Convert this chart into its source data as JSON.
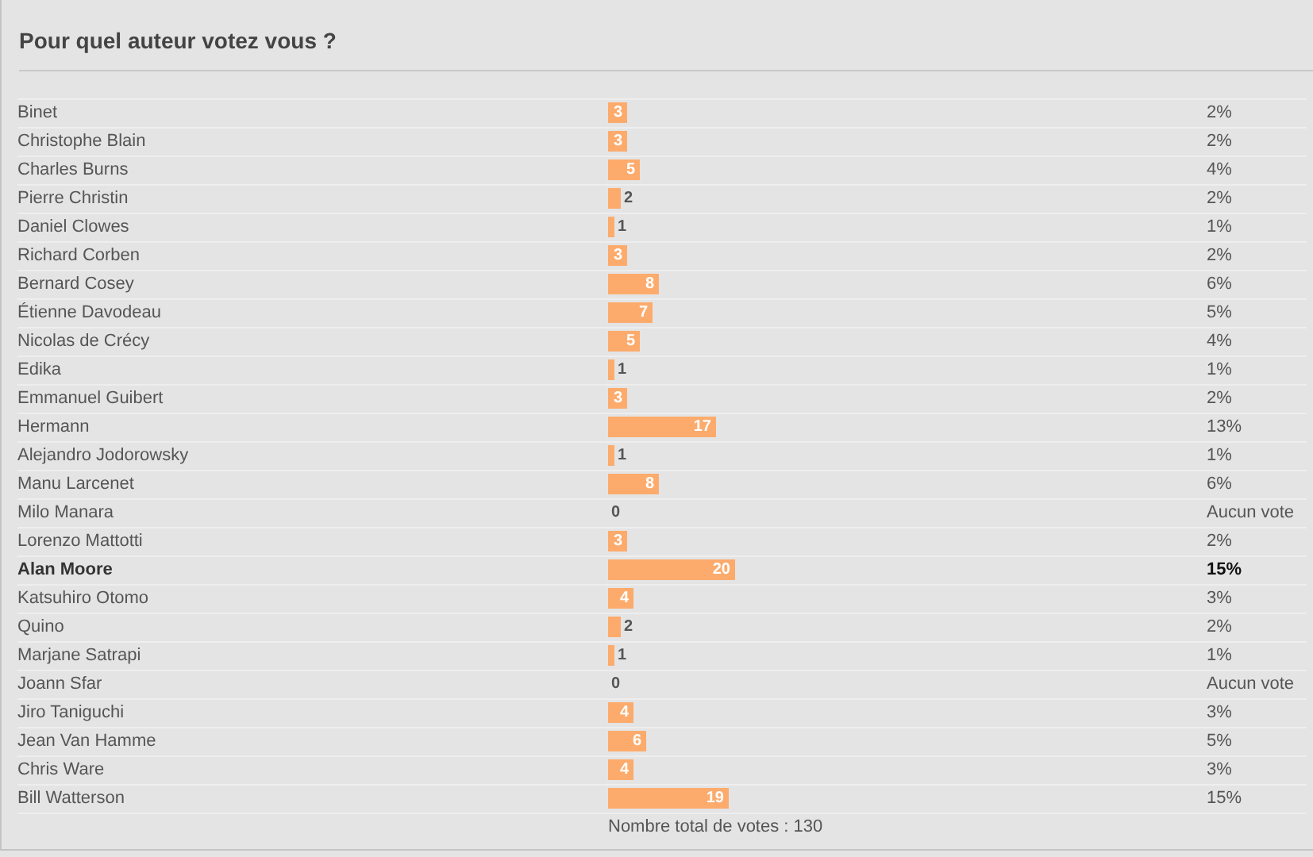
{
  "chart_data": {
    "type": "bar",
    "orientation": "horizontal",
    "title": "Pour quel auteur votez vous ?",
    "categories": [
      "Binet",
      "Christophe Blain",
      "Charles Burns",
      "Pierre Christin",
      "Daniel Clowes",
      "Richard Corben",
      "Bernard Cosey",
      "Étienne Davodeau",
      "Nicolas de Crécy",
      "Edika",
      "Emmanuel Guibert",
      "Hermann",
      "Alejandro Jodorowsky",
      "Manu Larcenet",
      "Milo Manara",
      "Lorenzo Mattotti",
      "Alan Moore",
      "Katsuhiro Otomo",
      "Quino",
      "Marjane Satrapi",
      "Joann Sfar",
      "Jiro Taniguchi",
      "Jean Van Hamme",
      "Chris Ware",
      "Bill Watterson"
    ],
    "y2_categories": [
      "2%",
      "2%",
      "4%",
      "2%",
      "1%",
      "2%",
      "6%",
      "5%",
      "4%",
      "1%",
      "2%",
      "13%",
      "1%",
      "6%",
      "Aucun vote",
      "2%",
      "15%",
      "3%",
      "2%",
      "1%",
      "Aucun vote",
      "3%",
      "5%",
      "3%",
      "15%"
    ],
    "values": [
      3,
      3,
      5,
      2,
      1,
      3,
      8,
      7,
      5,
      1,
      3,
      17,
      1,
      8,
      0,
      3,
      20,
      4,
      2,
      1,
      0,
      4,
      6,
      4,
      19
    ],
    "color": "#fcab6c",
    "data_labels": true,
    "annotations": [
      "Nombre total de votes : 130"
    ]
  }
}
